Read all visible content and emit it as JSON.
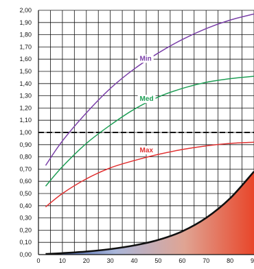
{
  "chart_data": {
    "type": "line",
    "title": "",
    "xlabel": "",
    "ylabel": "",
    "xlim": [
      0,
      90
    ],
    "ylim": [
      0,
      2.0
    ],
    "grid": true,
    "x_ticks": [
      "0",
      "10",
      "20",
      "30",
      "40",
      "50",
      "60",
      "70",
      "80",
      "9"
    ],
    "y_ticks": [
      "0,00",
      "0,10",
      "0,20",
      "0,30",
      "0,40",
      "0,50",
      "0,60",
      "0,70",
      "0,80",
      "0,90",
      "1,00",
      "1,10",
      "1,20",
      "1,30",
      "1,40",
      "1,50",
      "1,60",
      "1,70",
      "1,80",
      "1,90",
      "2,00"
    ],
    "reference_line": {
      "y": 1.0,
      "style": "dashed"
    },
    "series": [
      {
        "name": "Min",
        "color": "#7a3fa8",
        "x": [
          3,
          10,
          20,
          30,
          40,
          50,
          60,
          70,
          80,
          90
        ],
        "y": [
          0.73,
          0.93,
          1.16,
          1.36,
          1.52,
          1.65,
          1.76,
          1.85,
          1.92,
          1.97
        ]
      },
      {
        "name": "Med",
        "color": "#1e9e55",
        "x": [
          3,
          10,
          20,
          30,
          40,
          50,
          60,
          70,
          80,
          90
        ],
        "y": [
          0.56,
          0.72,
          0.91,
          1.06,
          1.19,
          1.29,
          1.36,
          1.41,
          1.44,
          1.46
        ]
      },
      {
        "name": "Max",
        "color": "#e03030",
        "x": [
          3,
          10,
          20,
          30,
          40,
          50,
          60,
          70,
          80,
          90
        ],
        "y": [
          0.39,
          0.5,
          0.62,
          0.71,
          0.77,
          0.82,
          0.86,
          0.89,
          0.91,
          0.92
        ]
      },
      {
        "name": "",
        "type": "area",
        "color": "#111111",
        "fill_gradient": [
          "#2e4fa0",
          "#a9b6da",
          "#e0a493",
          "#e8462a"
        ],
        "x": [
          3,
          10,
          20,
          30,
          40,
          50,
          60,
          70,
          80,
          90
        ],
        "y": [
          0.005,
          0.012,
          0.025,
          0.045,
          0.075,
          0.12,
          0.19,
          0.3,
          0.46,
          0.68
        ]
      }
    ]
  }
}
